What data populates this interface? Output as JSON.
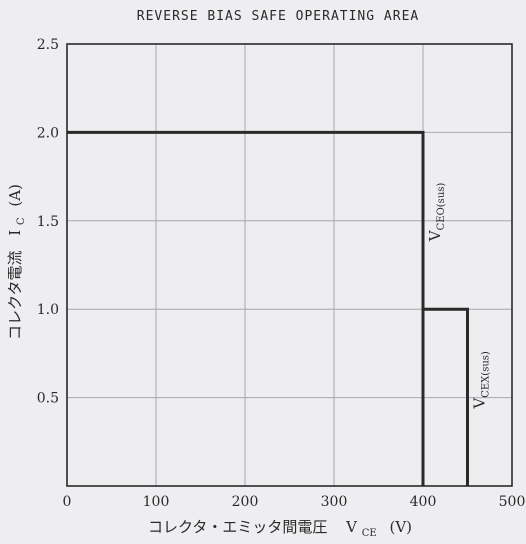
{
  "chart_data": {
    "type": "line",
    "title": "REVERSE BIAS SAFE OPERATING AREA",
    "xlabel": "コレクタ・エミッタ間電圧",
    "xlabel_symbol": "V",
    "xlabel_subscript": "CE",
    "xlabel_unit": "(V)",
    "ylabel": "コレクタ電流",
    "ylabel_symbol": "I",
    "ylabel_subscript": "C",
    "ylabel_unit": "(A)",
    "xlim": [
      0,
      500
    ],
    "ylim": [
      0,
      2.5
    ],
    "x_ticks": [
      0,
      100,
      200,
      300,
      400,
      500
    ],
    "x_tick_labels": [
      "0",
      "100",
      "200",
      "300",
      "400",
      "500"
    ],
    "y_ticks": [
      0.5,
      1.0,
      1.5,
      2.0,
      2.5
    ],
    "y_tick_labels": [
      "0.5",
      "1.0",
      "1.5",
      "2.0",
      "2.5"
    ],
    "grid": true,
    "series": [
      {
        "name": "VCEO(sus)",
        "style": "solid",
        "x": [
          0,
          400,
          400
        ],
        "y": [
          2.0,
          2.0,
          0
        ]
      },
      {
        "name": "VCEX(sus)",
        "style": "solid",
        "x": [
          400,
          450,
          450
        ],
        "y": [
          1.0,
          1.0,
          0
        ]
      },
      {
        "style": "dashed",
        "x": [
          400,
          400
        ],
        "y": [
          1.0,
          0
        ]
      }
    ],
    "annotations": [
      {
        "symbol": "V",
        "sub": "CEO(sus)",
        "x": 400,
        "y": 1.55
      },
      {
        "symbol": "V",
        "sub": "CEX(sus)",
        "x": 450,
        "y": 0.6
      }
    ],
    "colors": {
      "background": "#eeeef1",
      "ink": "#2a2a2a",
      "grid": "#a8a8ad"
    }
  }
}
